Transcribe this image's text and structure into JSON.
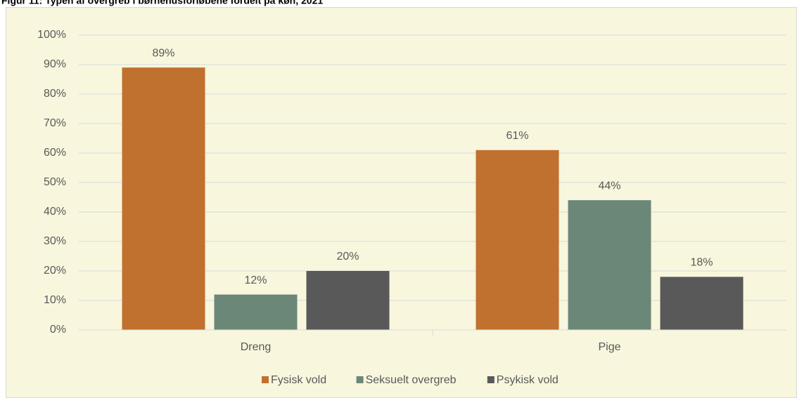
{
  "chart_data": {
    "type": "bar",
    "title": "Figur 11: Typen af overgreb i børnehusforløbene fordelt på køn, 2021",
    "categories": [
      "Dreng",
      "Pige"
    ],
    "series": [
      {
        "name": "Fysisk vold",
        "color": "#c0702f",
        "values": [
          89,
          61
        ],
        "value_labels": [
          "89%",
          "61%"
        ]
      },
      {
        "name": "Seksuelt overgreb",
        "color": "#6b8778",
        "values": [
          12,
          44
        ],
        "value_labels": [
          "12%",
          "44%"
        ]
      },
      {
        "name": "Psykisk vold",
        "color": "#595959",
        "values": [
          20,
          18
        ],
        "value_labels": [
          "20%",
          "18%"
        ]
      }
    ],
    "ylim": [
      0,
      100
    ],
    "yticks": [
      {
        "value": 0,
        "label": "0%"
      },
      {
        "value": 10,
        "label": "10%"
      },
      {
        "value": 20,
        "label": "20%"
      },
      {
        "value": 30,
        "label": "30%"
      },
      {
        "value": 40,
        "label": "40%"
      },
      {
        "value": 50,
        "label": "50%"
      },
      {
        "value": 60,
        "label": "60%"
      },
      {
        "value": 70,
        "label": "70%"
      },
      {
        "value": 80,
        "label": "80%"
      },
      {
        "value": 90,
        "label": "90%"
      },
      {
        "value": 100,
        "label": "100%"
      }
    ],
    "grid": true,
    "legend": "bottom"
  }
}
